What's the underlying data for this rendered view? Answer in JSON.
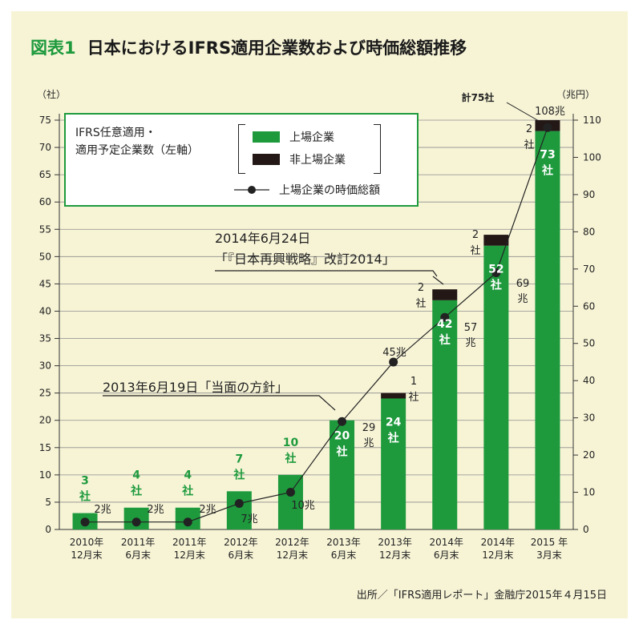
{
  "figure": {
    "number": "図表1",
    "title": "日本におけるIFRS適用企業数および時価総額推移",
    "source": "出所／「IFRS適用レポート」金融庁2015年４月15日"
  },
  "legend": {
    "title_line1": "IFRS任意適用・",
    "title_line2": "適用予定企業数（左軸）",
    "listed": "上場企業",
    "unlisted": "非上場企業",
    "market_cap": "上場企業の時価総額"
  },
  "callouts": {
    "c2014_line1": "2014年6月24日",
    "c2014_line2": "「『日本再興戦略』改訂2014」",
    "c2013": "2013年6月19日「当面の方針」",
    "total": "計75社"
  },
  "colors": {
    "listed": "#1e9a3d",
    "unlisted": "#231815",
    "line": "#222222",
    "grid": "#8c8c8c",
    "highlight": "#1e9a3d",
    "frame_bg": "#f7f4d6"
  },
  "chart_data": {
    "type": "bar",
    "y_left_label": "（社）",
    "y_right_label": "（兆円）",
    "ylim_left": [
      0,
      75
    ],
    "ylim_right": [
      0,
      110
    ],
    "y_left_ticks": [
      "0",
      "5",
      "10",
      "15",
      "20",
      "25",
      "30",
      "35",
      "40",
      "45",
      "50",
      "55",
      "60",
      "65",
      "70",
      "75"
    ],
    "y_right_ticks": [
      "0",
      "10",
      "20",
      "30",
      "40",
      "50",
      "60",
      "70",
      "80",
      "90",
      "100",
      "110"
    ],
    "grid": true,
    "categories": [
      [
        "2010年",
        "12月末"
      ],
      [
        "2011年",
        "6月末"
      ],
      [
        "2011年",
        "12月末"
      ],
      [
        "2012年",
        "6月末"
      ],
      [
        "2012年",
        "12月末"
      ],
      [
        "2013年",
        "6月末"
      ],
      [
        "2013年",
        "12月末"
      ],
      [
        "2014年",
        "6月末"
      ],
      [
        "2014年",
        "12月末"
      ],
      [
        "2015 年",
        "3月末"
      ]
    ],
    "series": [
      {
        "name": "上場企業",
        "axis": "left",
        "values": [
          3,
          4,
          4,
          7,
          10,
          20,
          24,
          42,
          52,
          73
        ],
        "labels": [
          [
            "3",
            "社"
          ],
          [
            "4",
            "社"
          ],
          [
            "4",
            "社"
          ],
          [
            "7",
            "社"
          ],
          [
            "10",
            "社"
          ],
          [
            "20",
            "社"
          ],
          [
            "24",
            "社"
          ],
          [
            "42",
            "社"
          ],
          [
            "52",
            "社"
          ],
          [
            "73",
            "社"
          ]
        ]
      },
      {
        "name": "非上場企業",
        "axis": "left",
        "values": [
          0,
          0,
          0,
          0,
          0,
          0,
          1,
          2,
          2,
          2
        ],
        "labels": [
          [],
          [],
          [],
          [],
          [],
          [],
          [
            "1",
            "社"
          ],
          [
            "2",
            "社"
          ],
          [
            "2",
            "社"
          ],
          [
            "2",
            "社"
          ]
        ]
      },
      {
        "name": "上場企業の時価総額",
        "axis": "right",
        "type": "line",
        "values": [
          2,
          2,
          2,
          7,
          10,
          29,
          45,
          57,
          69,
          108
        ],
        "labels": [
          [
            "2兆"
          ],
          [
            "2兆"
          ],
          [
            "2兆"
          ],
          [
            "7兆"
          ],
          [
            "10兆"
          ],
          [
            "29",
            "兆"
          ],
          [
            "45兆"
          ],
          [
            "57",
            "兆"
          ],
          [
            "69",
            "兆"
          ],
          [
            "108兆"
          ]
        ]
      }
    ]
  }
}
